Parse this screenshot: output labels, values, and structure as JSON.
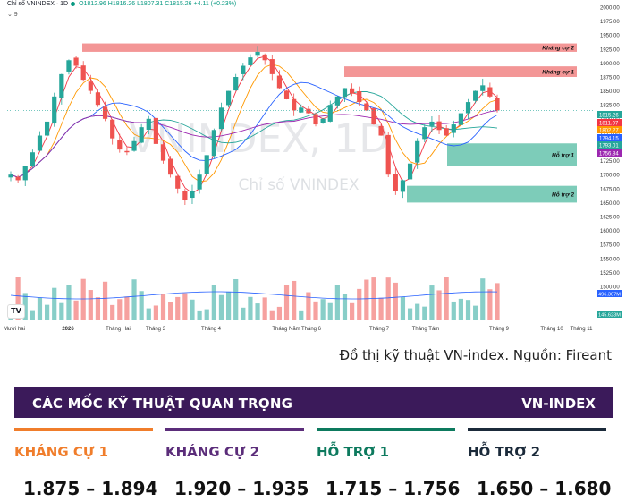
{
  "header": {
    "symbol": "Chỉ số VNINDEX · 1D",
    "ohlc": "O1812.96 H1816.26 L1807.31 C1815.26 +4.11 (+0.23%)",
    "sub": "⌄ 9"
  },
  "watermark": {
    "main": "VNINDEX, 1D",
    "sub": "Chỉ số VNINDEX"
  },
  "chart_data": {
    "type": "candlestick",
    "y_axis_ticks": [
      2000,
      1975,
      1950,
      1925,
      1900,
      1875,
      1850,
      1825,
      1800,
      1775,
      1750,
      1725,
      1700,
      1675,
      1650,
      1625,
      1600,
      1575,
      1550,
      1525,
      1500
    ],
    "x_axis_labels": [
      "Mười hai",
      "2026",
      "Tháng Hai",
      "Tháng 3",
      "Tháng 4",
      "Tháng Năm",
      "Tháng 6",
      "Tháng 7",
      "Tháng Tám",
      "Tháng 9",
      "Tháng 10",
      "Tháng 11"
    ],
    "zones": [
      {
        "label": "Kháng cự 2",
        "low": 1920,
        "high": 1935,
        "kind": "resistance"
      },
      {
        "label": "Kháng cự 1",
        "low": 1875,
        "high": 1894,
        "kind": "resistance"
      },
      {
        "label": "Hỗ trợ 1",
        "low": 1715,
        "high": 1756,
        "kind": "support"
      },
      {
        "label": "Hỗ trợ 2",
        "low": 1650,
        "high": 1680,
        "kind": "support"
      }
    ],
    "price_tags": [
      {
        "value": "1815.26",
        "color": "#26a69a"
      },
      {
        "value": "1811.07",
        "color": "#f23645"
      },
      {
        "value": "1802.27",
        "color": "#ff9800"
      },
      {
        "value": "1794.15",
        "color": "#2962ff"
      },
      {
        "value": "1793.01",
        "color": "#26a69a"
      },
      {
        "value": "1756.84",
        "color": "#9c27b0"
      }
    ],
    "volume_tags": [
      {
        "value": "496.307M",
        "color": "#2962ff"
      },
      {
        "value": "145.623M",
        "color": "#26a69a"
      }
    ],
    "closes": [
      1700,
      1690,
      1715,
      1740,
      1770,
      1795,
      1840,
      1880,
      1905,
      1895,
      1870,
      1850,
      1825,
      1800,
      1765,
      1745,
      1740,
      1760,
      1785,
      1800,
      1755,
      1725,
      1700,
      1675,
      1655,
      1670,
      1700,
      1735,
      1780,
      1820,
      1850,
      1875,
      1895,
      1910,
      1920,
      1905,
      1880,
      1855,
      1835,
      1815,
      1820,
      1810,
      1790,
      1800,
      1825,
      1840,
      1855,
      1845,
      1830,
      1815,
      1790,
      1770,
      1700,
      1670,
      1690,
      1720,
      1760,
      1785,
      1795,
      1780,
      1770,
      1790,
      1810,
      1830,
      1850,
      1860,
      1840,
      1815
    ],
    "colors": {
      "up": "#26a69a",
      "down": "#ef5350",
      "resistance": "#f28b8b",
      "support": "#6fc7b1"
    }
  },
  "caption": "Đồ thị kỹ thuật VN-index. Nguồn: Fireant",
  "banner": {
    "title": "CÁC MỐC KỸ THUẬT QUAN TRỌNG",
    "index": "VN-INDEX"
  },
  "levels": [
    {
      "name": "KHÁNG CỰ 1",
      "value": "1.875 – 1.894",
      "color": "#f07d2b"
    },
    {
      "name": "KHÁNG CỰ 2",
      "value": "1.920 – 1.935",
      "color": "#5b2d7a"
    },
    {
      "name": "HỖ TRỢ 1",
      "value": "1.715 – 1.756",
      "color": "#0d7a5e"
    },
    {
      "name": "HỖ TRỢ 2",
      "value": "1.650 – 1.680",
      "color": "#1b2a3a"
    }
  ]
}
